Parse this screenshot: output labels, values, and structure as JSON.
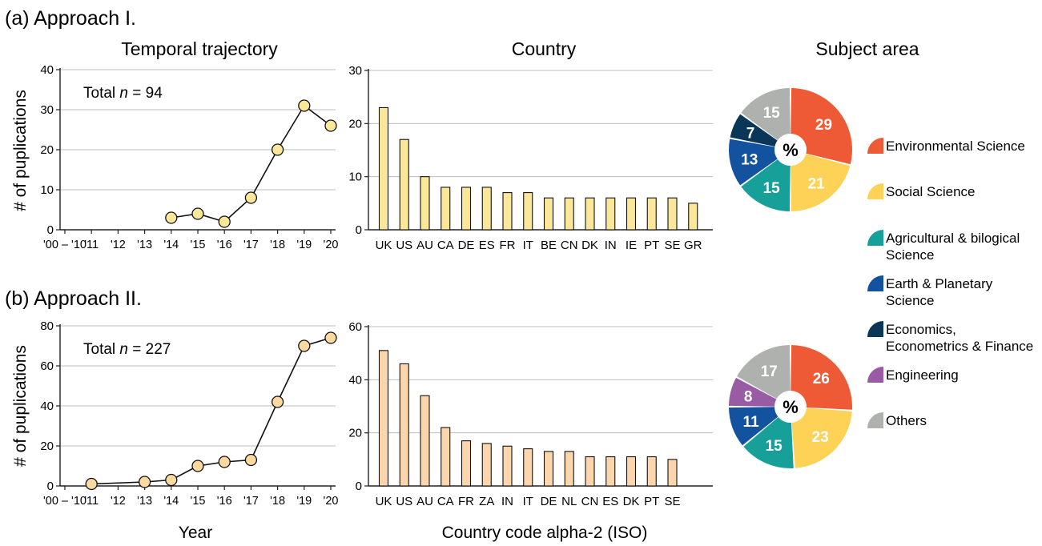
{
  "labels": {
    "panel_a": "(a) Approach I.",
    "panel_b": "(b) Approach II.",
    "title_temporal": "Temporal trajectory",
    "title_country": "Country",
    "title_subject": "Subject area",
    "ylabel": "# of puplications",
    "xlabel_year": "Year",
    "xlabel_country": "Country code alpha-2 (ISO)",
    "pie_center": "%"
  },
  "colors": {
    "line_marker_a": "#fbe79a",
    "line_marker_b": "#fbd9a0",
    "bar_a": "#fbe79a",
    "bar_b": "#fbd6ad",
    "grid": "#bdbdbd"
  },
  "legend": [
    {
      "name": "Environmental Science",
      "color": "#ee5a36"
    },
    {
      "name": "Social Science",
      "color": "#fdd256"
    },
    {
      "name": "Agricultural & bilogical Science",
      "color": "#17a09a"
    },
    {
      "name": "Earth & Planetary Science",
      "color": "#12529f"
    },
    {
      "name": "Economics, Econometrics & Finance",
      "color": "#0a3658"
    },
    {
      "name": "Engineering",
      "color": "#9a5ba5"
    },
    {
      "name": "Others",
      "color": "#aeb1ae"
    }
  ],
  "chart_data": [
    {
      "type": "line",
      "id": "temporal_a",
      "title": "Temporal trajectory",
      "ylabel": "# of puplications",
      "annotation_prefix": "Total ",
      "annotation_n": "n",
      "annotation_suffix": " = 94",
      "categories": [
        "'00 – '10",
        "'11",
        "'12",
        "'13",
        "'14",
        "'15",
        "'16",
        "'17",
        "'18",
        "'19",
        "'20"
      ],
      "x": [
        "'14",
        "'15",
        "'16",
        "'17",
        "'18",
        "'19",
        "'20"
      ],
      "values": [
        3,
        4,
        2,
        8,
        20,
        31,
        26
      ],
      "ylim": [
        0,
        40
      ],
      "yticks": [
        0,
        10,
        20,
        30,
        40
      ]
    },
    {
      "type": "bar",
      "id": "country_a",
      "title": "Country",
      "categories": [
        "UK",
        "US",
        "AU",
        "CA",
        "DE",
        "ES",
        "FR",
        "IT",
        "BE",
        "CN",
        "DK",
        "IN",
        "IE",
        "PT",
        "SE",
        "GR"
      ],
      "values": [
        23,
        17,
        10,
        8,
        8,
        8,
        7,
        7,
        6,
        6,
        6,
        6,
        6,
        6,
        6,
        5
      ],
      "ylim": [
        0,
        30
      ],
      "yticks": [
        0,
        10,
        20,
        30
      ]
    },
    {
      "type": "pie",
      "id": "subject_a",
      "title": "Subject area",
      "categories": [
        "Environmental Science",
        "Social Science",
        "Agricultural & bilogical Science",
        "Earth & Planetary Science",
        "Economics, Econometrics & Finance",
        "Others"
      ],
      "values": [
        29,
        21,
        15,
        13,
        7,
        15
      ],
      "colors": [
        "#ee5a36",
        "#fdd256",
        "#17a09a",
        "#12529f",
        "#0a3658",
        "#aeb1ae"
      ]
    },
    {
      "type": "line",
      "id": "temporal_b",
      "xlabel": "Year",
      "ylabel": "# of puplications",
      "annotation_prefix": "Total ",
      "annotation_n": "n",
      "annotation_suffix": " = 227",
      "categories": [
        "'00 – '10",
        "'11",
        "'12",
        "'13",
        "'14",
        "'15",
        "'16",
        "'17",
        "'18",
        "'19",
        "'20"
      ],
      "x": [
        "'11",
        "'13",
        "'14",
        "'15",
        "'16",
        "'17",
        "'18",
        "'19",
        "'20"
      ],
      "values": [
        1,
        2,
        3,
        10,
        12,
        13,
        42,
        70,
        74
      ],
      "ylim": [
        0,
        80
      ],
      "yticks": [
        0,
        20,
        40,
        60,
        80
      ]
    },
    {
      "type": "bar",
      "id": "country_b",
      "xlabel": "Country code alpha-2 (ISO)",
      "categories": [
        "UK",
        "US",
        "AU",
        "CA",
        "FR",
        "ZA",
        "IN",
        "IT",
        "DE",
        "NL",
        "CN",
        "ES",
        "DK",
        "PT",
        "SE"
      ],
      "values": [
        51,
        46,
        34,
        22,
        17,
        16,
        15,
        14,
        13,
        13,
        11,
        11,
        11,
        11,
        10
      ],
      "ylim": [
        0,
        60
      ],
      "yticks": [
        0,
        20,
        40,
        60
      ]
    },
    {
      "type": "pie",
      "id": "subject_b",
      "categories": [
        "Environmental Science",
        "Social Science",
        "Agricultural & bilogical Science",
        "Earth & Planetary Science",
        "Engineering",
        "Others"
      ],
      "values": [
        26,
        23,
        15,
        11,
        8,
        17
      ],
      "colors": [
        "#ee5a36",
        "#fdd256",
        "#17a09a",
        "#12529f",
        "#9a5ba5",
        "#aeb1ae"
      ]
    }
  ]
}
